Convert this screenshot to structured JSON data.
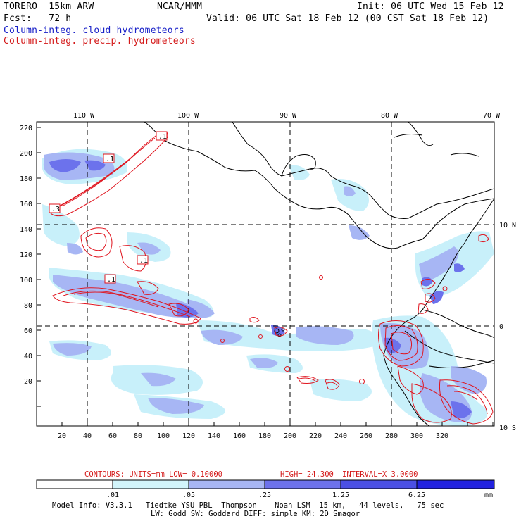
{
  "header": {
    "model": "TORERO  15km ARW",
    "org": "NCAR/MMM",
    "init": "Init: 06 UTC Wed 15 Feb 12",
    "fcst": "Fcst:   72 h",
    "valid": "Valid: 06 UTC Sat 18 Feb 12 (00 CST Sat 18 Feb 12)",
    "field_cloud": "Column-integ. cloud hydrometeors",
    "field_precip": "Column-integ. precip. hydrometeors"
  },
  "map": {
    "top_lon_labels": [
      "110 W",
      "100 W",
      "90 W",
      "80 W",
      "70 W"
    ],
    "right_lat_labels": [
      "10 N",
      "0",
      "10 S"
    ],
    "y_ticks": [
      "220",
      "200",
      "180",
      "160",
      "140",
      "120",
      "100",
      "80",
      "60",
      "40",
      "20"
    ],
    "x_ticks": [
      "20",
      "40",
      "60",
      "80",
      "100",
      "120",
      "140",
      "160",
      "180",
      "200",
      "220",
      "240",
      "260",
      "280",
      "300",
      "320"
    ],
    "contour_labels": [
      ".1",
      ".1",
      ".3",
      ".1",
      ".1"
    ],
    "colors": {
      "cloud_light": "#c8f0fa",
      "cloud_mid": "#a7b6f4",
      "cloud_strong": "#6c72ec",
      "cloud_dark": "#3b3cdc",
      "precip_contour": "#e0141e",
      "coast": "#000000"
    }
  },
  "contours_info": {
    "units": "CONTOURS:  UNITS=mm  LOW= 0.10000",
    "high": "HIGH=  24.300",
    "interval": "INTERVAL=X  3.0000"
  },
  "colorbar": {
    "labels": [
      ".01",
      ".05",
      ".25",
      "1.25",
      "6.25"
    ],
    "unit": "mm",
    "colors": [
      "#ffffff",
      "#d2f5fb",
      "#a7b6f4",
      "#6d72ec",
      "#4b50e4",
      "#2222e0"
    ]
  },
  "footer": {
    "line1": "Model Info: V3.3.1   Tiedtke YSU PBL  Thompson    Noah LSM  15 km,   44 levels,   75 sec",
    "line2": "LW: Godd SW: Goddard DIFF: simple KM: 2D Smagor"
  }
}
